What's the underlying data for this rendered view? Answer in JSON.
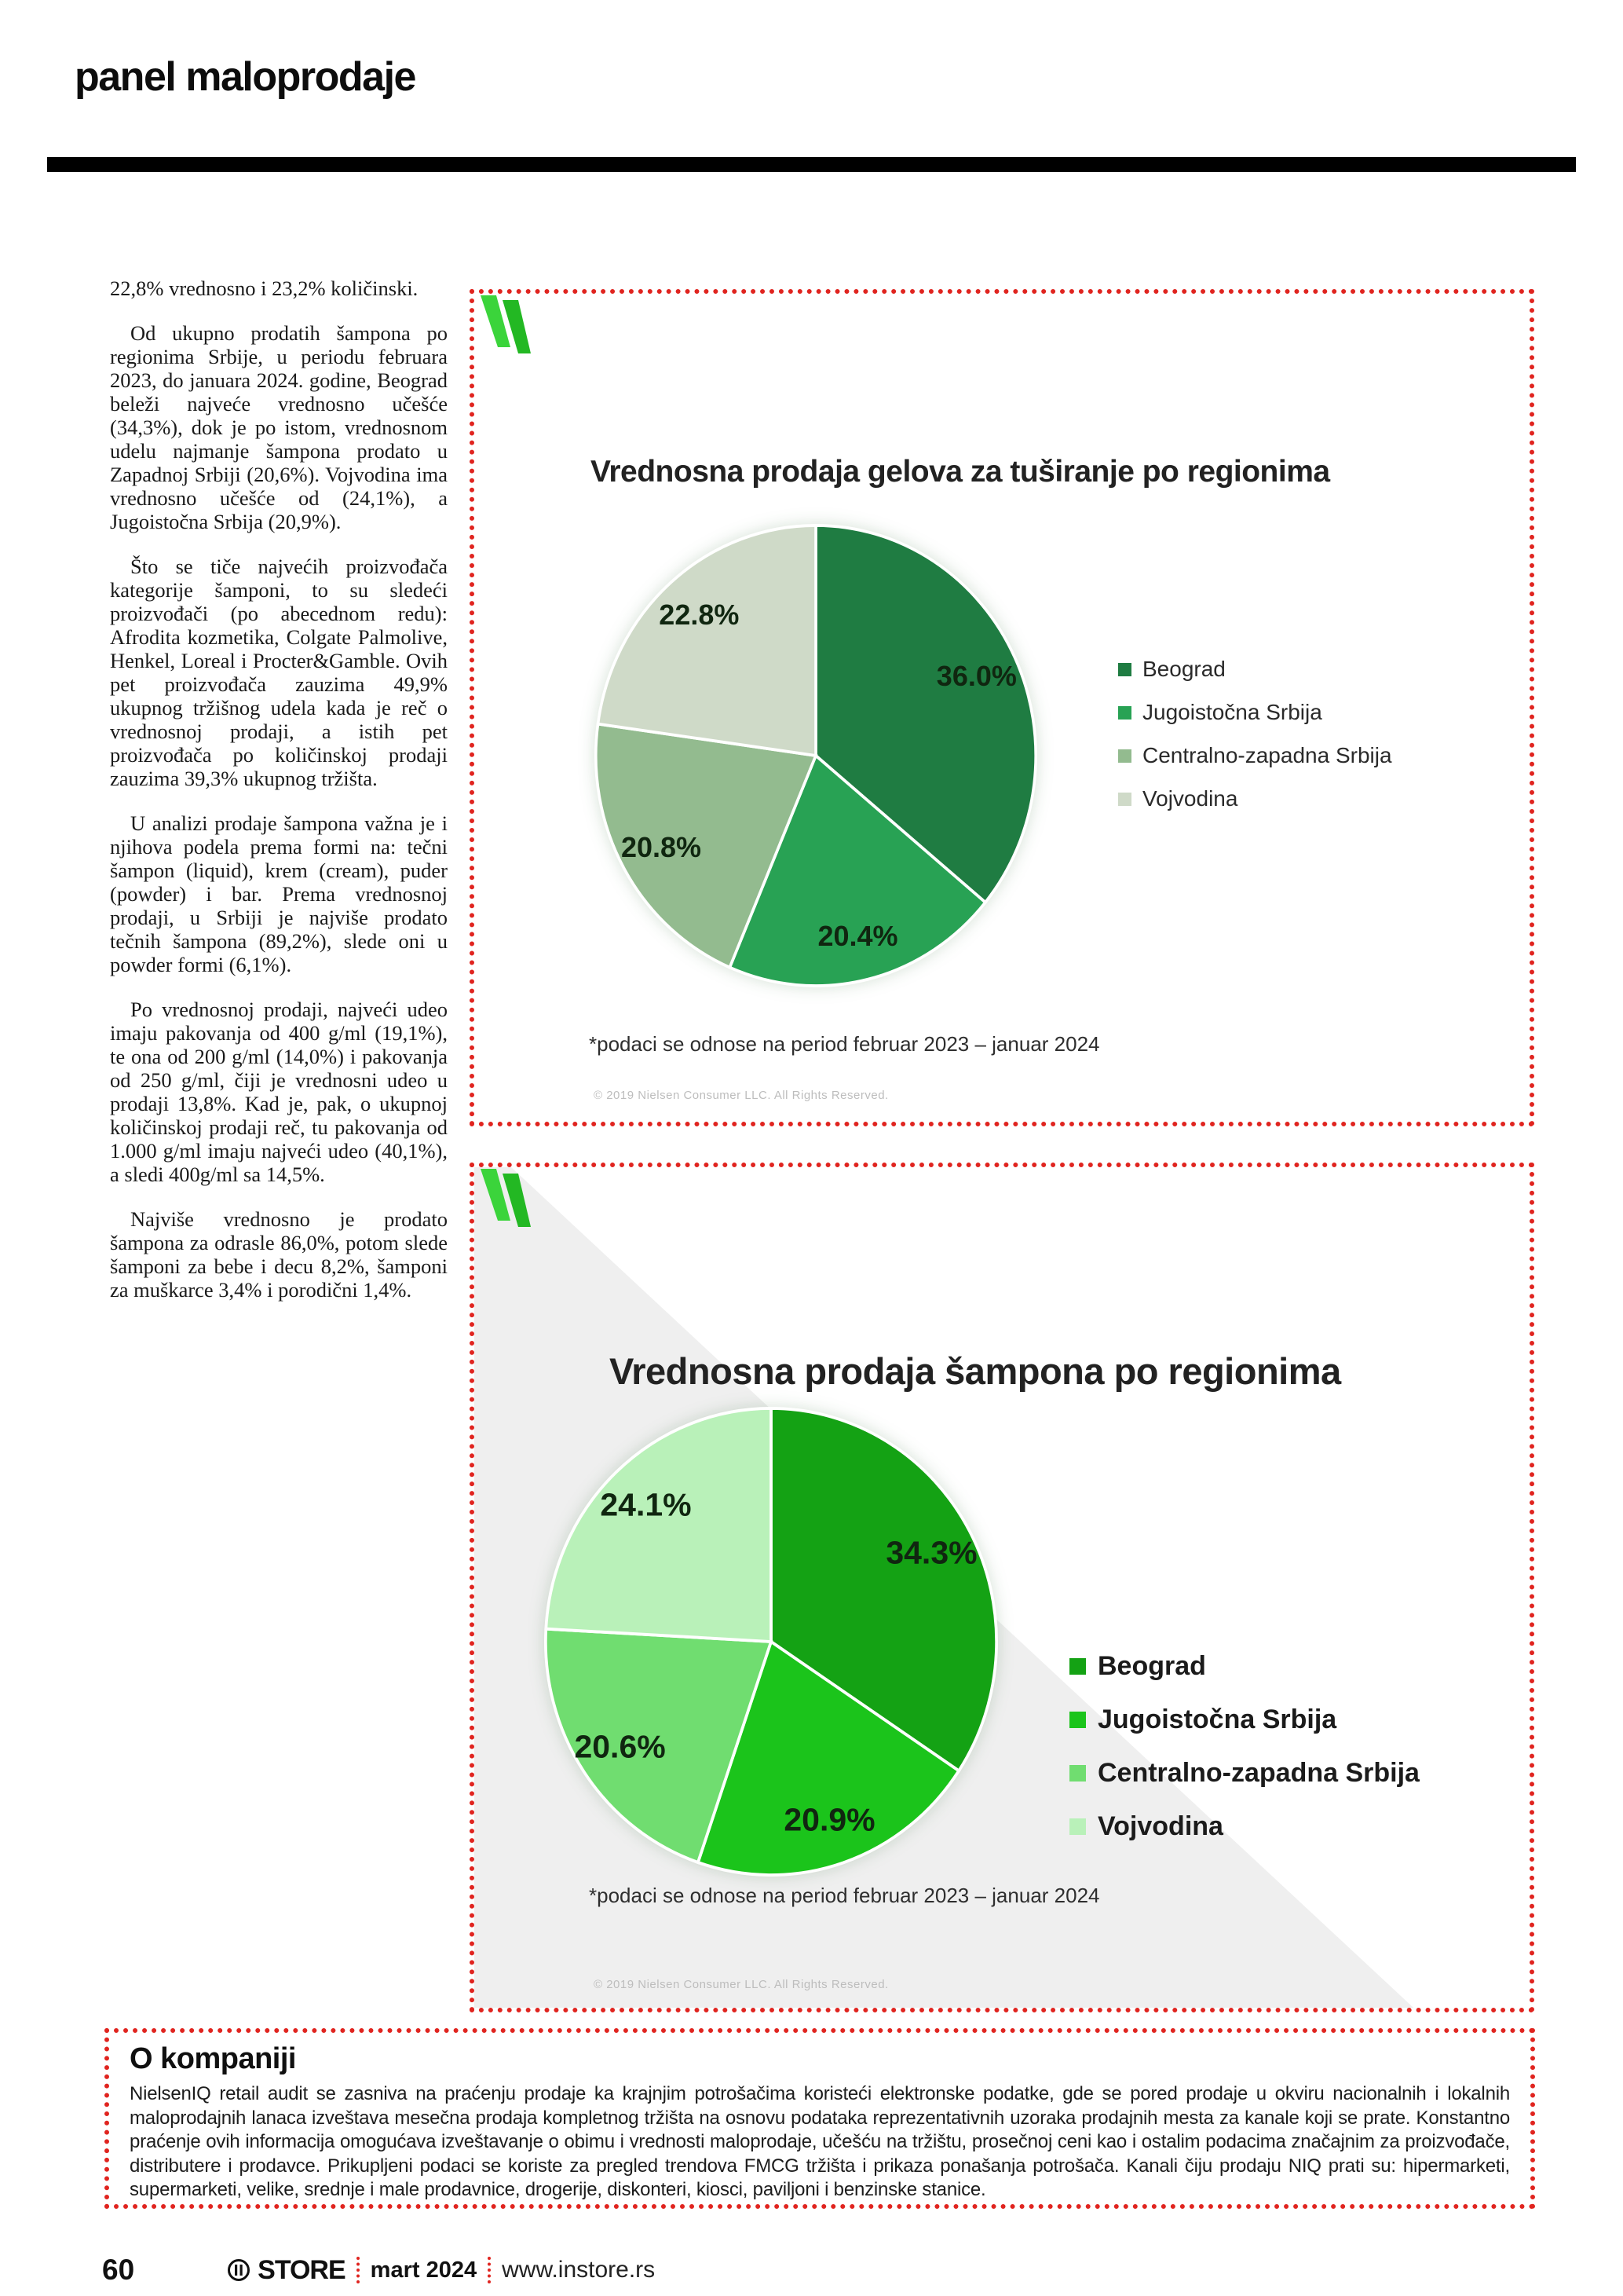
{
  "header": {
    "title": "panel maloprodaje"
  },
  "article": {
    "paragraphs": [
      "22,8% vrednosno i 23,2% količinski.",
      "Od ukupno prodatih šampona po regionima Srbije, u periodu februara 2023, do januara 2024. godine, Beograd beleži najveće vrednosno učešće (34,3%), dok je po istom, vrednosnom udelu najmanje šampona prodato u Zapadnoj Srbiji (20,6%). Vojvodina ima vrednosno učešće od (24,1%), a Jugoistočna Srbija (20,9%).",
      "Što se tiče najvećih proizvođača kategorije šamponi, to su sledeći proizvođači (po abecednom redu): Afrodita kozmetika, Colgate Palmolive, Henkel, Loreal i Procter&Gamble. Ovih pet proizvođača zauzima 49,9% ukupnog tržišnog udela kada je reč o vrednosnoj prodaji, a istih pet proizvođača po količinskoj prodaji zauzima 39,3% ukupnog tržišta.",
      "U analizi prodaje šampona važna je i njihova podela prema formi na: tečni šampon (liquid), krem (cream), puder (powder) i bar. Prema vrednosnoj prodaji, u Srbiji je najviše prodato tečnih šampona (89,2%), slede oni u powder formi (6,1%).",
      "Po vrednosnoj prodaji, najveći udeo imaju pakovanja od 400 g/ml (19,1%), te ona od 200 g/ml (14,0%) i pakovanja od 250 g/ml, čiji je vrednosni udeo u prodaji 13,8%. Kad je, pak, o ukupnoj količinskoj prodaji reč, tu pakovanja od 1.000 g/ml imaju najveći udeo (40,1%), a sledi 400g/ml sa 14,5%.",
      "Najviše vrednosno je prodato šampona za odrasle 86,0%, potom slede šamponi za bebe i decu 8,2%, šamponi za muškarce 3,4% i porodični 1,4%."
    ]
  },
  "charts": [
    {
      "title": "Vrednosna prodaja gelova za tuširanje po regionima",
      "footnote": "*podaci se odnose na period februar 2023 – januar 2024",
      "copyright": "© 2019 Nielsen Consumer LLC. All Rights Reserved.",
      "slices": [
        {
          "region": "Beograd",
          "value": 36.0,
          "label": "36.0%",
          "color": "#1f7c42"
        },
        {
          "region": "Jugoistočna Srbija",
          "value": 20.4,
          "label": "20.4%",
          "color": "#28a254"
        },
        {
          "region": "Centralno-zapadna Srbija",
          "value": 20.8,
          "label": "20.8%",
          "color": "#93bb8f"
        },
        {
          "region": "Vojvodina",
          "value": 22.8,
          "label": "22.8%",
          "color": "#cfdac8"
        }
      ]
    },
    {
      "title": "Vrednosna prodaja šampona po regionima",
      "footnote": "*podaci se odnose na period februar 2023 – januar 2024",
      "copyright": "© 2019 Nielsen Consumer LLC. All Rights Reserved.",
      "slices": [
        {
          "region": "Beograd",
          "value": 34.3,
          "label": "34.3%",
          "color": "#14a214"
        },
        {
          "region": "Jugoistočna Srbija",
          "value": 20.9,
          "label": "20.9%",
          "color": "#1bc41b"
        },
        {
          "region": "Centralno-zapadna Srbija",
          "value": 20.6,
          "label": "20.6%",
          "color": "#70dd70"
        },
        {
          "region": "Vojvodina",
          "value": 24.1,
          "label": "24.1%",
          "color": "#b9f1b9"
        }
      ]
    }
  ],
  "chart_data": [
    {
      "type": "pie",
      "title": "Vrednosna prodaja gelova za tuširanje po regionima",
      "categories": [
        "Beograd",
        "Jugoistočna Srbija",
        "Centralno-zapadna Srbija",
        "Vojvodina"
      ],
      "values": [
        36.0,
        20.4,
        20.8,
        22.8
      ],
      "data_labels": [
        "36.0%",
        "20.4%",
        "20.8%",
        "22.8%"
      ],
      "colors": [
        "#1f7c42",
        "#28a254",
        "#93bb8f",
        "#cfdac8"
      ],
      "legend_position": "right",
      "footnote": "*podaci se odnose na period februar 2023 – januar 2024"
    },
    {
      "type": "pie",
      "title": "Vrednosna prodaja šampona po regionima",
      "categories": [
        "Beograd",
        "Jugoistočna Srbija",
        "Centralno-zapadna Srbija",
        "Vojvodina"
      ],
      "values": [
        34.3,
        20.9,
        20.6,
        24.1
      ],
      "data_labels": [
        "34.3%",
        "20.9%",
        "20.6%",
        "24.1%"
      ],
      "colors": [
        "#14a214",
        "#1bc41b",
        "#70dd70",
        "#b9f1b9"
      ],
      "legend_position": "right",
      "footnote": "*podaci se odnose na period februar 2023 – januar 2024"
    }
  ],
  "about": {
    "heading": "O kompaniji",
    "body": "NielsenIQ retail audit se zasniva na praćenju prodaje ka krajnjim potrošačima koristeći elektronske podatke, gde se pored prodaje u okviru nacionalnih i lokalnih maloprodajnih lanaca izveštava mesečna prodaja kompletnog tržišta na osnovu podataka reprezentativnih uzoraka prodajnih mesta za kanale koji se prate. Konstantno praćenje ovih informacija omogućava izveštavanje o obimu i vrednosti maloprodaje, učešću na tržištu, prosečnoj ceni kao i ostalim podacima značajnim za proizvođače, distributere i prodavce. Prikupljeni podaci se koriste za pregled trendova FMCG tržišta i prikaza ponašanja potrošača. Kanali čiju prodaju NIQ prati su: hipermarketi, supermarketi, velike, srednje i male prodavnice, drogerije, diskonteri, kiosci, paviljoni i benzinske stanice."
  },
  "footer": {
    "page_number": "60",
    "brand": "STORE",
    "issue": "mart 2024",
    "site": "www.instore.rs"
  },
  "colors": {
    "accent_red": "#e0241f",
    "logo_green_light": "#3bd43b",
    "logo_green_dark": "#23b823",
    "band_gray": "#efefef"
  }
}
